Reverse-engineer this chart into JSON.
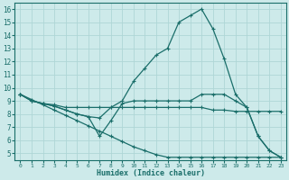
{
  "xlabel": "Humidex (Indice chaleur)",
  "xlim": [
    -0.5,
    23.5
  ],
  "ylim": [
    4.5,
    16.5
  ],
  "xticks": [
    0,
    1,
    2,
    3,
    4,
    5,
    6,
    7,
    8,
    9,
    10,
    11,
    12,
    13,
    14,
    15,
    16,
    17,
    18,
    19,
    20,
    21,
    22,
    23
  ],
  "yticks": [
    5,
    6,
    7,
    8,
    9,
    10,
    11,
    12,
    13,
    14,
    15,
    16
  ],
  "bg_color": "#cdeaea",
  "grid_color": "#afd6d6",
  "line_color": "#1a6e6a",
  "lines": [
    {
      "x": [
        0,
        1,
        2,
        3,
        4,
        5,
        6,
        7,
        8,
        9,
        10,
        11,
        12,
        13,
        14,
        15,
        16,
        17,
        18,
        19,
        20,
        21,
        22,
        23
      ],
      "y": [
        9.5,
        9.0,
        8.8,
        8.6,
        8.3,
        8.0,
        7.8,
        7.7,
        8.5,
        9.0,
        10.5,
        11.5,
        12.5,
        13.0,
        15.0,
        15.5,
        16.0,
        14.5,
        12.2,
        9.5,
        8.5,
        6.3,
        5.2,
        4.7
      ]
    },
    {
      "x": [
        0,
        1,
        2,
        3,
        4,
        5,
        6,
        7,
        8,
        9,
        10,
        11,
        12,
        13,
        14,
        15,
        16,
        17,
        18,
        19,
        20,
        21,
        22,
        23
      ],
      "y": [
        9.5,
        9.0,
        8.8,
        8.6,
        8.3,
        8.0,
        7.8,
        6.3,
        7.5,
        8.8,
        9.0,
        9.0,
        9.0,
        9.0,
        9.0,
        9.0,
        9.5,
        9.5,
        9.5,
        9.0,
        8.5,
        6.3,
        5.2,
        4.7
      ]
    },
    {
      "x": [
        0,
        1,
        2,
        3,
        4,
        5,
        6,
        7,
        8,
        9,
        10,
        11,
        12,
        13,
        14,
        15,
        16,
        17,
        18,
        19,
        20,
        21,
        22,
        23
      ],
      "y": [
        9.5,
        9.0,
        8.8,
        8.7,
        8.5,
        8.5,
        8.5,
        8.5,
        8.5,
        8.5,
        8.5,
        8.5,
        8.5,
        8.5,
        8.5,
        8.5,
        8.5,
        8.3,
        8.3,
        8.2,
        8.2,
        8.2,
        8.2,
        8.2
      ]
    },
    {
      "x": [
        0,
        1,
        2,
        3,
        4,
        5,
        6,
        7,
        8,
        9,
        10,
        11,
        12,
        13,
        14,
        15,
        16,
        17,
        18,
        19,
        20,
        21,
        22,
        23
      ],
      "y": [
        9.5,
        9.1,
        8.7,
        8.3,
        7.9,
        7.5,
        7.1,
        6.7,
        6.3,
        5.9,
        5.5,
        5.2,
        4.9,
        4.7,
        4.7,
        4.7,
        4.7,
        4.7,
        4.7,
        4.7,
        4.7,
        4.7,
        4.7,
        4.7
      ]
    }
  ]
}
